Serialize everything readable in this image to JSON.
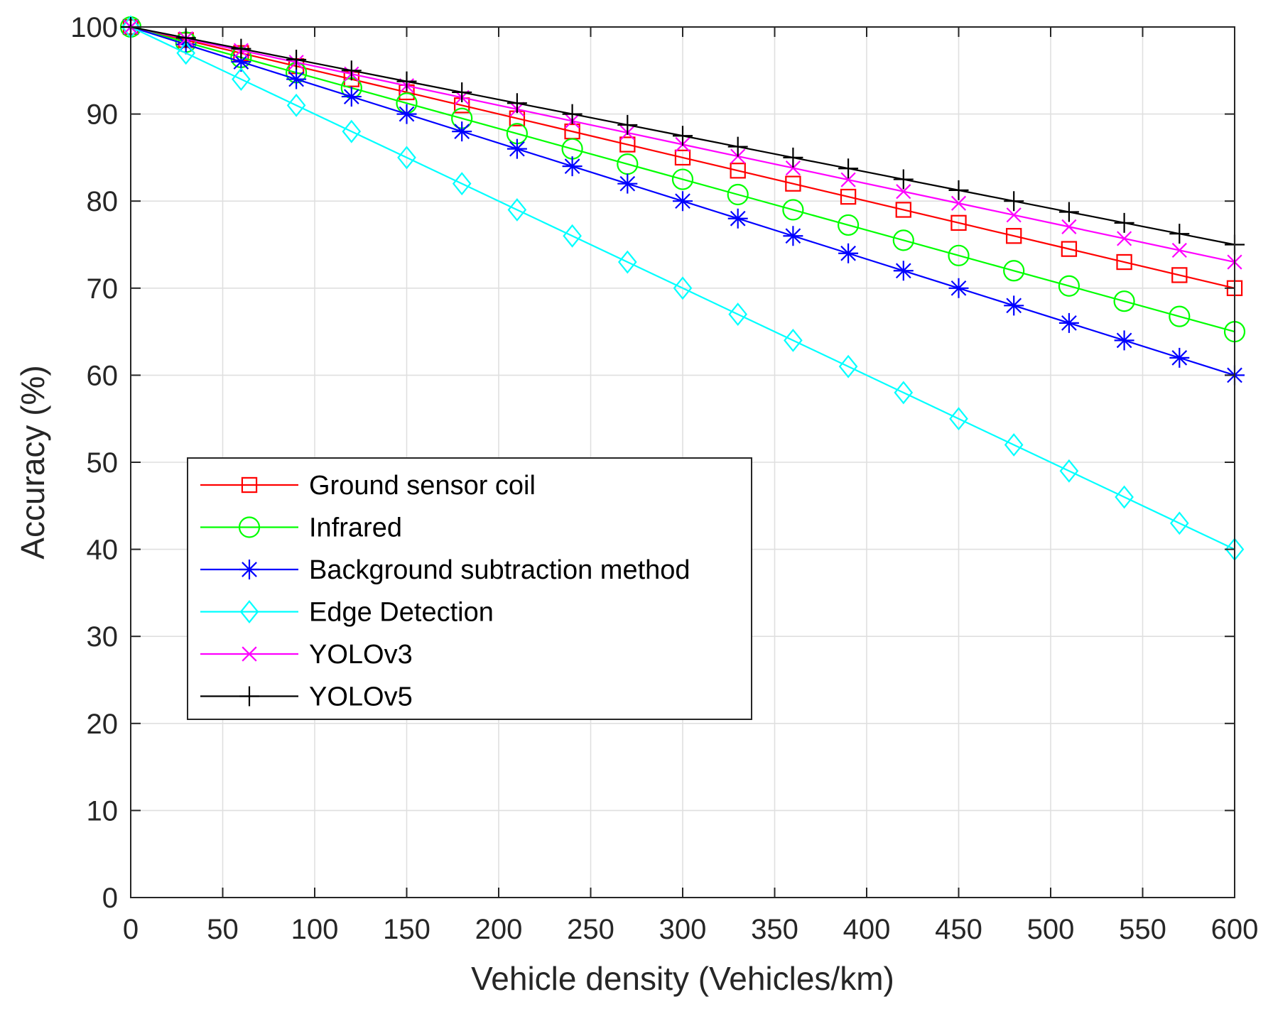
{
  "chart_data": {
    "type": "line",
    "title": "",
    "xlabel": "Vehicle density (Vehicles/km)",
    "ylabel": "Accuracy (%)",
    "xlim": [
      0,
      600
    ],
    "ylim": [
      0,
      100
    ],
    "xticks": [
      0,
      50,
      100,
      150,
      200,
      250,
      300,
      350,
      400,
      450,
      500,
      550,
      600
    ],
    "yticks": [
      0,
      10,
      20,
      30,
      40,
      50,
      60,
      70,
      80,
      90,
      100
    ],
    "grid": true,
    "legend_location": "lower-left",
    "x": [
      0,
      30,
      60,
      90,
      120,
      150,
      180,
      210,
      240,
      270,
      300,
      330,
      360,
      390,
      420,
      450,
      480,
      510,
      540,
      570,
      600
    ],
    "series": [
      {
        "name": "Ground sensor coil",
        "color": "#ff0000",
        "marker": "square",
        "values": [
          100,
          98.5,
          97,
          95.5,
          94,
          92.5,
          91,
          89.5,
          88,
          86.5,
          85,
          83.5,
          82,
          80.5,
          79,
          77.5,
          76,
          74.5,
          73,
          71.5,
          70
        ]
      },
      {
        "name": "Infrared",
        "color": "#00ff00",
        "marker": "circle",
        "values": [
          100,
          98.25,
          96.5,
          94.75,
          93,
          91.25,
          89.5,
          87.75,
          86,
          84.25,
          82.5,
          80.75,
          79,
          77.25,
          75.5,
          73.75,
          72,
          70.25,
          68.5,
          66.75,
          65
        ]
      },
      {
        "name": "Background subtraction method",
        "color": "#0000ff",
        "marker": "asterisk",
        "values": [
          100,
          98,
          96,
          94,
          92,
          90,
          88,
          86,
          84,
          82,
          80,
          78,
          76,
          74,
          72,
          70,
          68,
          66,
          64,
          62,
          60
        ]
      },
      {
        "name": "Edge Detection",
        "color": "#00ffff",
        "marker": "diamond",
        "values": [
          100,
          97,
          94,
          91,
          88,
          85,
          82,
          79,
          76,
          73,
          70,
          67,
          64,
          61,
          58,
          55,
          52,
          49,
          46,
          43,
          40
        ]
      },
      {
        "name": "YOLOv3",
        "color": "#ff00ff",
        "marker": "x",
        "values": [
          100,
          98.65,
          97.3,
          95.95,
          94.6,
          93.25,
          91.9,
          90.55,
          89.2,
          87.85,
          86.5,
          85.15,
          83.8,
          82.45,
          81.1,
          79.75,
          78.4,
          77.05,
          75.7,
          74.35,
          73
        ]
      },
      {
        "name": "YOLOv5",
        "color": "#000000",
        "marker": "plus",
        "values": [
          100,
          98.75,
          97.5,
          96.25,
          95,
          93.75,
          92.5,
          91.25,
          90,
          88.75,
          87.5,
          86.25,
          85,
          83.75,
          82.5,
          81.25,
          80,
          78.75,
          77.5,
          76.25,
          75
        ]
      }
    ]
  }
}
